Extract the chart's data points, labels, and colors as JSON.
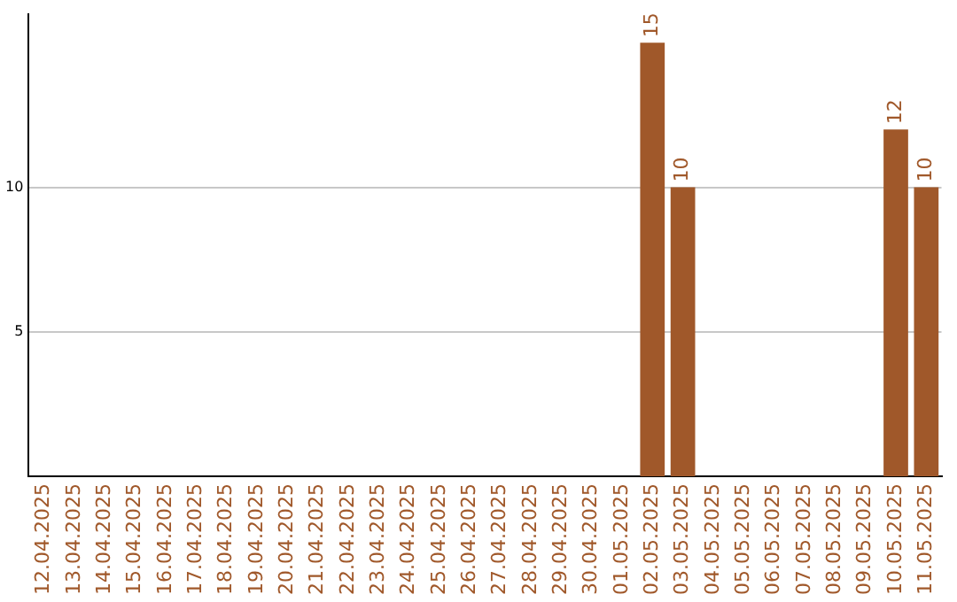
{
  "chart_data": {
    "type": "bar",
    "categories": [
      "12.04.2025",
      "13.04.2025",
      "14.04.2025",
      "15.04.2025",
      "16.04.2025",
      "17.04.2025",
      "18.04.2025",
      "19.04.2025",
      "20.04.2025",
      "21.04.2025",
      "22.04.2025",
      "23.04.2025",
      "24.04.2025",
      "25.04.2025",
      "26.04.2025",
      "27.04.2025",
      "28.04.2025",
      "29.04.2025",
      "30.04.2025",
      "01.05.2025",
      "02.05.2025",
      "03.05.2025",
      "04.05.2025",
      "05.05.2025",
      "06.05.2025",
      "07.05.2025",
      "08.05.2025",
      "09.05.2025",
      "10.05.2025",
      "11.05.2025"
    ],
    "values": [
      null,
      null,
      null,
      null,
      null,
      null,
      null,
      null,
      null,
      null,
      null,
      null,
      null,
      null,
      null,
      null,
      null,
      null,
      null,
      null,
      15,
      10,
      null,
      null,
      null,
      null,
      null,
      null,
      12,
      10
    ],
    "color": "#a0582a",
    "ylim": [
      0,
      16
    ],
    "yticks": [
      5,
      10
    ],
    "grid": "y",
    "data_labels": true,
    "legend": false
  }
}
